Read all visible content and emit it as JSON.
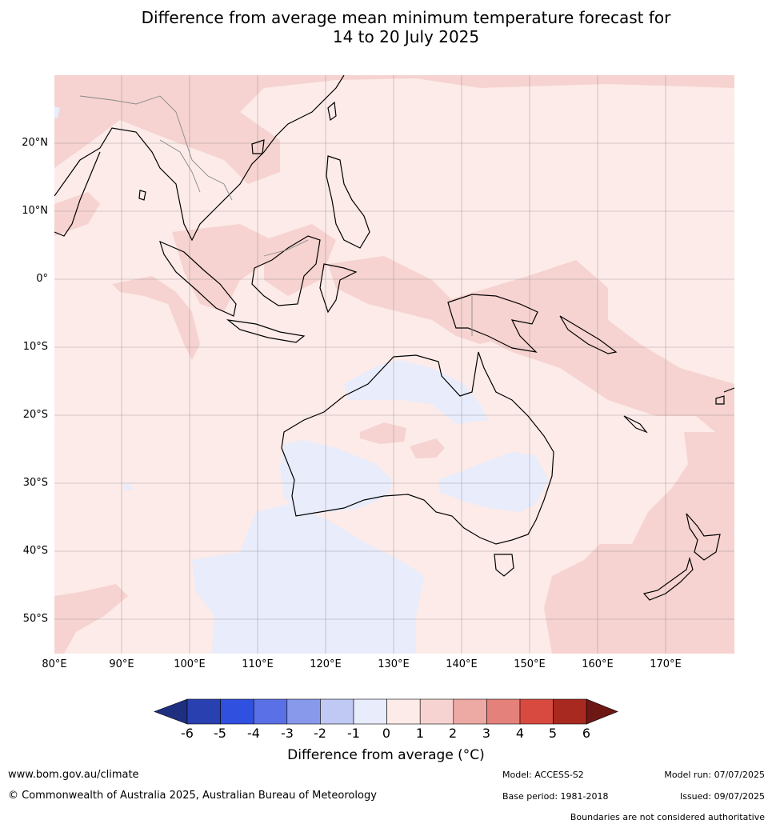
{
  "title_line1": "Difference from average mean minimum temperature forecast for",
  "title_line2": "14 to 20 July 2025",
  "map": {
    "lon_range": [
      80,
      180
    ],
    "lat_range": [
      -55,
      30
    ],
    "lat_labels": [
      "20°N",
      "10°N",
      "0°",
      "10°S",
      "20°S",
      "30°S",
      "40°S",
      "50°S"
    ],
    "lon_labels": [
      "80°E",
      "90°E",
      "100°E",
      "110°E",
      "120°E",
      "130°E",
      "140°E",
      "150°E",
      "160°E",
      "170°E"
    ],
    "grid": true
  },
  "colorbar": {
    "title": "Difference from average (°C)",
    "labels": [
      "-6",
      "-5",
      "-4",
      "-3",
      "-2",
      "-1",
      "0",
      "1",
      "2",
      "3",
      "4",
      "5",
      "6"
    ],
    "colors": [
      "#1f2f80",
      "#2940b0",
      "#3050e0",
      "#5a70e6",
      "#8899ec",
      "#c0c8f4",
      "#e8ecfb",
      "#fcebe9",
      "#f6d3d0",
      "#eda9a4",
      "#e4817b",
      "#d84a3f",
      "#a8291f",
      "#6e1816"
    ]
  },
  "footer": {
    "website": "www.bom.gov.au/climate",
    "copyright": "© Commonwealth of Australia 2025, Australian Bureau of Meteorology",
    "model": "Model: ACCESS-S2",
    "base_period": "Base period: 1981-2018",
    "model_run": "Model run: 07/07/2025",
    "issued": "Issued: 09/07/2025",
    "disclaimer": "Boundaries are not considered authoritative"
  }
}
